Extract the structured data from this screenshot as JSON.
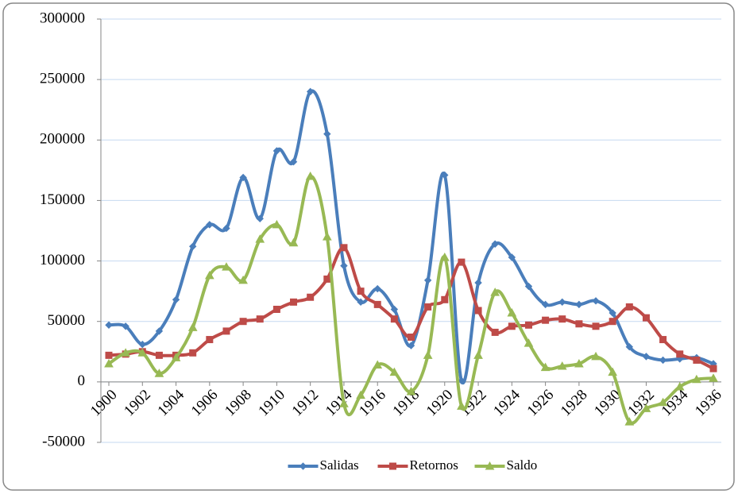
{
  "chart_data": {
    "type": "line",
    "x": [
      1900,
      1901,
      1902,
      1903,
      1904,
      1905,
      1906,
      1907,
      1908,
      1909,
      1910,
      1911,
      1912,
      1913,
      1914,
      1915,
      1916,
      1917,
      1918,
      1919,
      1920,
      1921,
      1922,
      1923,
      1924,
      1925,
      1926,
      1927,
      1928,
      1929,
      1930,
      1931,
      1932,
      1933,
      1934,
      1935,
      1936
    ],
    "series": [
      {
        "name": "Salidas",
        "color": "#4a7ebb",
        "marker": "diamond",
        "values": [
          47000,
          46000,
          31000,
          42000,
          68000,
          112000,
          130000,
          127000,
          169000,
          135000,
          191000,
          182000,
          240000,
          205000,
          96000,
          66000,
          77000,
          60000,
          30000,
          84000,
          171000,
          1000,
          82000,
          114000,
          103000,
          79000,
          64000,
          66000,
          64000,
          67000,
          57000,
          29000,
          21000,
          18000,
          19000,
          20000,
          15000
        ]
      },
      {
        "name": "Retornos",
        "color": "#be4b48",
        "marker": "square",
        "values": [
          22000,
          23000,
          25000,
          22000,
          22000,
          24000,
          35000,
          42000,
          50000,
          52000,
          60000,
          66000,
          70000,
          85000,
          111000,
          75000,
          64000,
          52000,
          37000,
          62000,
          68000,
          99000,
          59000,
          41000,
          46000,
          47000,
          51000,
          52000,
          48000,
          46000,
          50000,
          62000,
          53000,
          35000,
          23000,
          18000,
          11000
        ]
      },
      {
        "name": "Saldo",
        "color": "#98b954",
        "marker": "triangle",
        "values": [
          15000,
          24000,
          24000,
          7000,
          20000,
          45000,
          88000,
          95000,
          84000,
          118000,
          130000,
          115000,
          170000,
          120000,
          -18000,
          -11000,
          14000,
          8000,
          -8000,
          22000,
          103000,
          -20000,
          22000,
          74000,
          57000,
          32000,
          12000,
          13000,
          15000,
          21000,
          8000,
          -33000,
          -22000,
          -17000,
          -4000,
          2000,
          3000
        ]
      }
    ],
    "xlim": [
      1900,
      1936
    ],
    "xticks": [
      1900,
      1902,
      1904,
      1906,
      1908,
      1910,
      1912,
      1914,
      1916,
      1918,
      1920,
      1922,
      1924,
      1926,
      1928,
      1930,
      1932,
      1934,
      1936
    ],
    "ylim": [
      -50000,
      300000
    ],
    "yticks": [
      -50000,
      0,
      50000,
      100000,
      150000,
      200000,
      250000,
      300000
    ],
    "grid": true,
    "smooth": true,
    "legend": "bottom"
  }
}
